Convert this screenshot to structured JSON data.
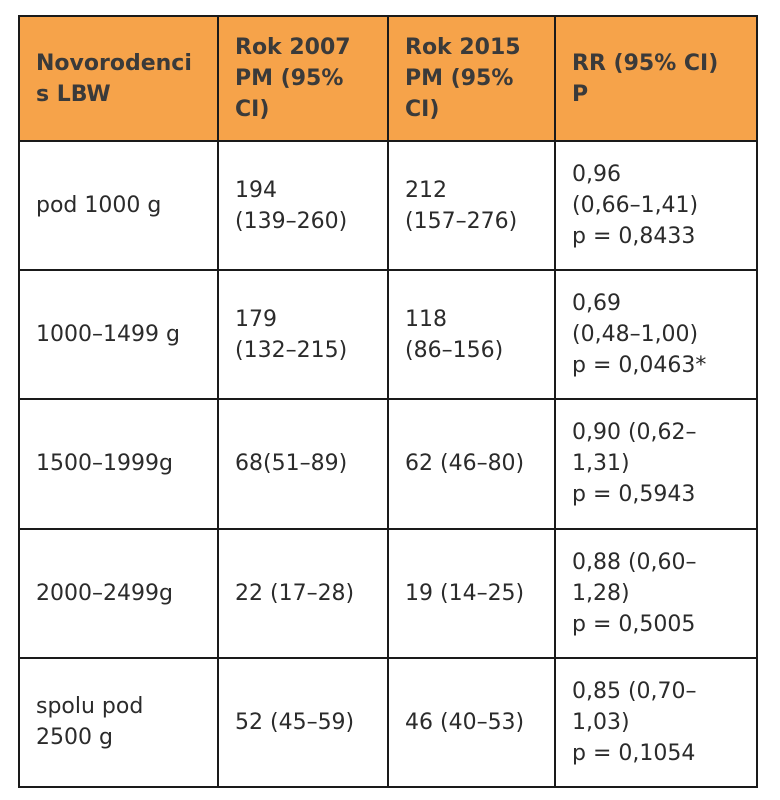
{
  "table": {
    "headers": [
      [
        "Novorodenci",
        "s LBW"
      ],
      [
        "Rok 2007",
        "PM (95%",
        "CI)"
      ],
      [
        "Rok 2015",
        "PM (95%",
        "CI)"
      ],
      [
        "RR (95% CI)",
        "P"
      ]
    ],
    "rows": [
      [
        [
          "pod 1000 g"
        ],
        [
          "194",
          "(139–260)"
        ],
        [
          "212",
          "(157–276)"
        ],
        [
          "0,96",
          "(0,66–1,41)",
          "p = 0,8433"
        ]
      ],
      [
        [
          "1000–1499 g"
        ],
        [
          "179",
          "(132–215)"
        ],
        [
          "118",
          "(86–156)"
        ],
        [
          "0,69",
          "(0,48–1,00)",
          "p = 0,0463*"
        ]
      ],
      [
        [
          "1500–1999g"
        ],
        [
          "68(51–89)"
        ],
        [
          "62 (46–80)"
        ],
        [
          "0,90 (0,62–",
          "1,31)",
          "p = 0,5943"
        ]
      ],
      [
        [
          "2000–2499g"
        ],
        [
          "22 (17–28)"
        ],
        [
          "19 (14–25)"
        ],
        [
          "0,88 (0,60–",
          "1,28)",
          "p = 0,5005"
        ]
      ],
      [
        [
          "spolu pod",
          "2500 g"
        ],
        [
          "52 (45–59)"
        ],
        [
          "46 (40–53)"
        ],
        [
          "0,85 (0,70–",
          "1,03)",
          "p = 0,1054"
        ]
      ]
    ]
  }
}
